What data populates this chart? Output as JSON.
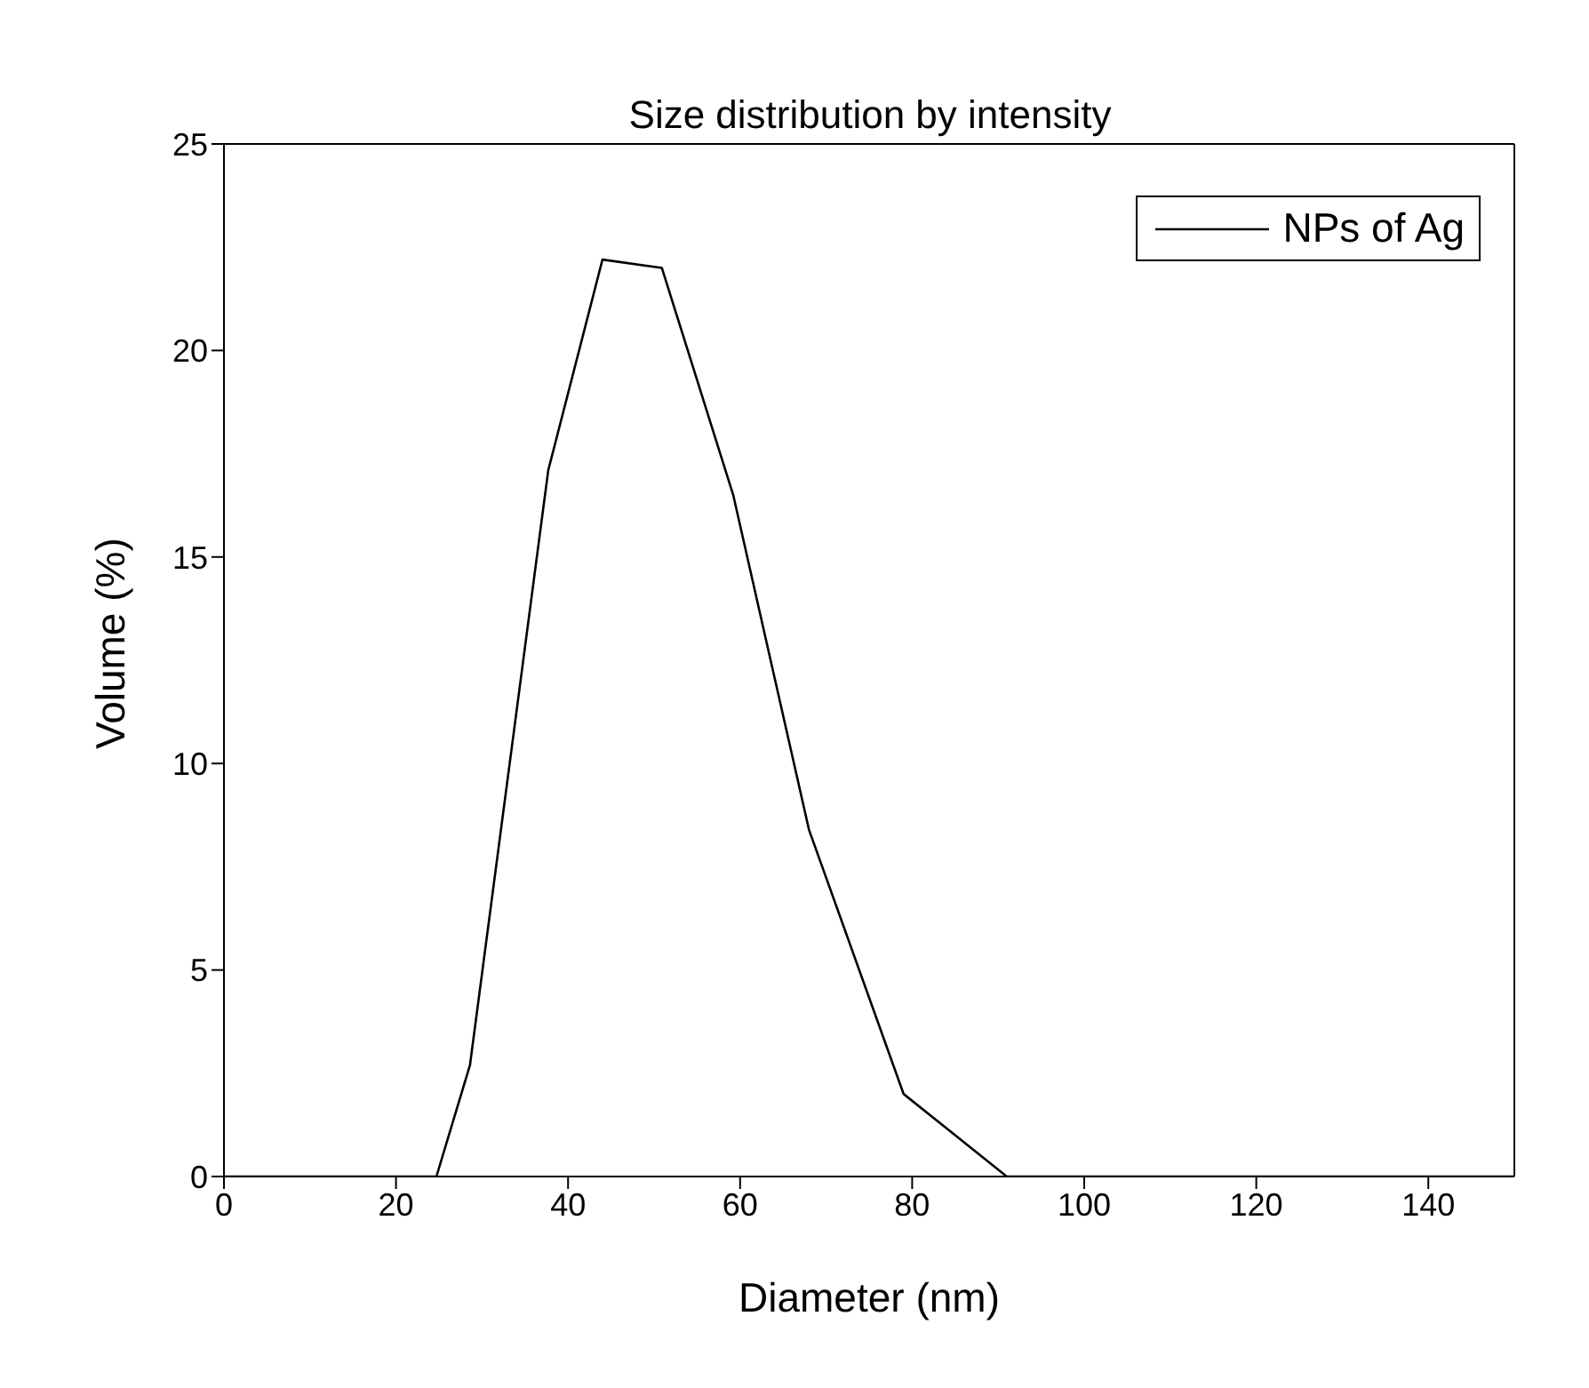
{
  "chart_data": {
    "type": "line",
    "title": "Size distribution by intensity",
    "xlabel": "Diameter (nm)",
    "ylabel": "Volume (%)",
    "x": [
      0,
      24.7,
      28.6,
      37.7,
      44,
      50.9,
      59.2,
      68,
      79,
      91,
      150
    ],
    "series": [
      {
        "name": "NPs of Ag",
        "color": "#000000",
        "values": [
          0,
          0,
          2.7,
          17.1,
          22.2,
          22.0,
          16.5,
          8.4,
          2.0,
          0,
          0
        ]
      }
    ],
    "xlim": [
      0,
      150
    ],
    "xticks": [
      0,
      20,
      40,
      60,
      80,
      100,
      120,
      140
    ],
    "ylim": [
      0,
      25
    ],
    "yticks": [
      0,
      5,
      10,
      15,
      20,
      25
    ],
    "grid": false,
    "legend": "top right",
    "marker": "none",
    "line_style": "solid"
  }
}
